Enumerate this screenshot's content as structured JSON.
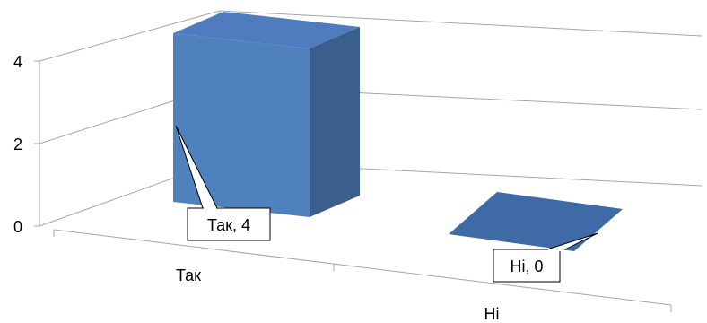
{
  "chart_data": {
    "type": "bar",
    "categories": [
      "Так",
      "Ні"
    ],
    "values": [
      4,
      0
    ],
    "ylim": [
      0,
      4
    ],
    "y_ticks": [
      "0",
      "2",
      "4"
    ],
    "data_labels": [
      "Так, 4",
      "Ні, 0"
    ],
    "title": "",
    "xlabel": "",
    "ylabel": "",
    "grid": true,
    "style": "3d-column",
    "colors": {
      "front": "#4f81bd",
      "side": "#3a5f8d",
      "top": "#4f7bbf",
      "grid": "#a6a6a6",
      "callout_border": "#000000"
    }
  }
}
